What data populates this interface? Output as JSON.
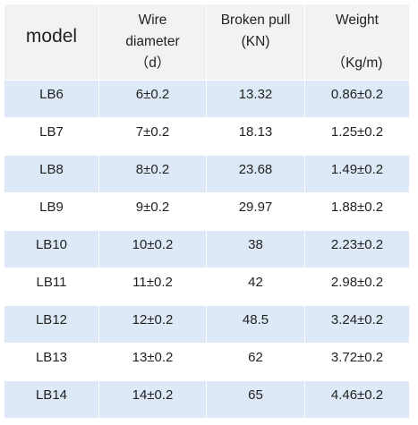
{
  "table": {
    "headers": {
      "model": "model",
      "wire_diameter": [
        "Wire",
        "diameter",
        "（d）"
      ],
      "broken_pull": [
        "Broken pull",
        "(KN)"
      ],
      "weight": [
        "Weight",
        "（Kg/m)"
      ]
    },
    "rows": [
      {
        "model": "LB6",
        "diameter": "6±0.2",
        "pull": "13.32",
        "weight": "0.86±0.2"
      },
      {
        "model": "LB7",
        "diameter": "7±0.2",
        "pull": "18.13",
        "weight": "1.25±0.2"
      },
      {
        "model": "LB8",
        "diameter": "8±0.2",
        "pull": "23.68",
        "weight": "1.49±0.2"
      },
      {
        "model": "LB9",
        "diameter": "9±0.2",
        "pull": "29.97",
        "weight": "1.88±0.2"
      },
      {
        "model": "LB10",
        "diameter": "10±0.2",
        "pull": "38",
        "weight": "2.23±0.2"
      },
      {
        "model": "LB11",
        "diameter": "11±0.2",
        "pull": "42",
        "weight": "2.98±0.2"
      },
      {
        "model": "LB12",
        "diameter": "12±0.2",
        "pull": "48.5",
        "weight": "3.24±0.2"
      },
      {
        "model": "LB13",
        "diameter": "13±0.2",
        "pull": "62",
        "weight": "3.72±0.2"
      },
      {
        "model": "LB14",
        "diameter": "14±0.2",
        "pull": "65",
        "weight": "4.46±0.2"
      }
    ]
  },
  "colors": {
    "header_bg": "#f2f2f2",
    "stripe_bg": "#dde9f6",
    "text": "#222222"
  }
}
